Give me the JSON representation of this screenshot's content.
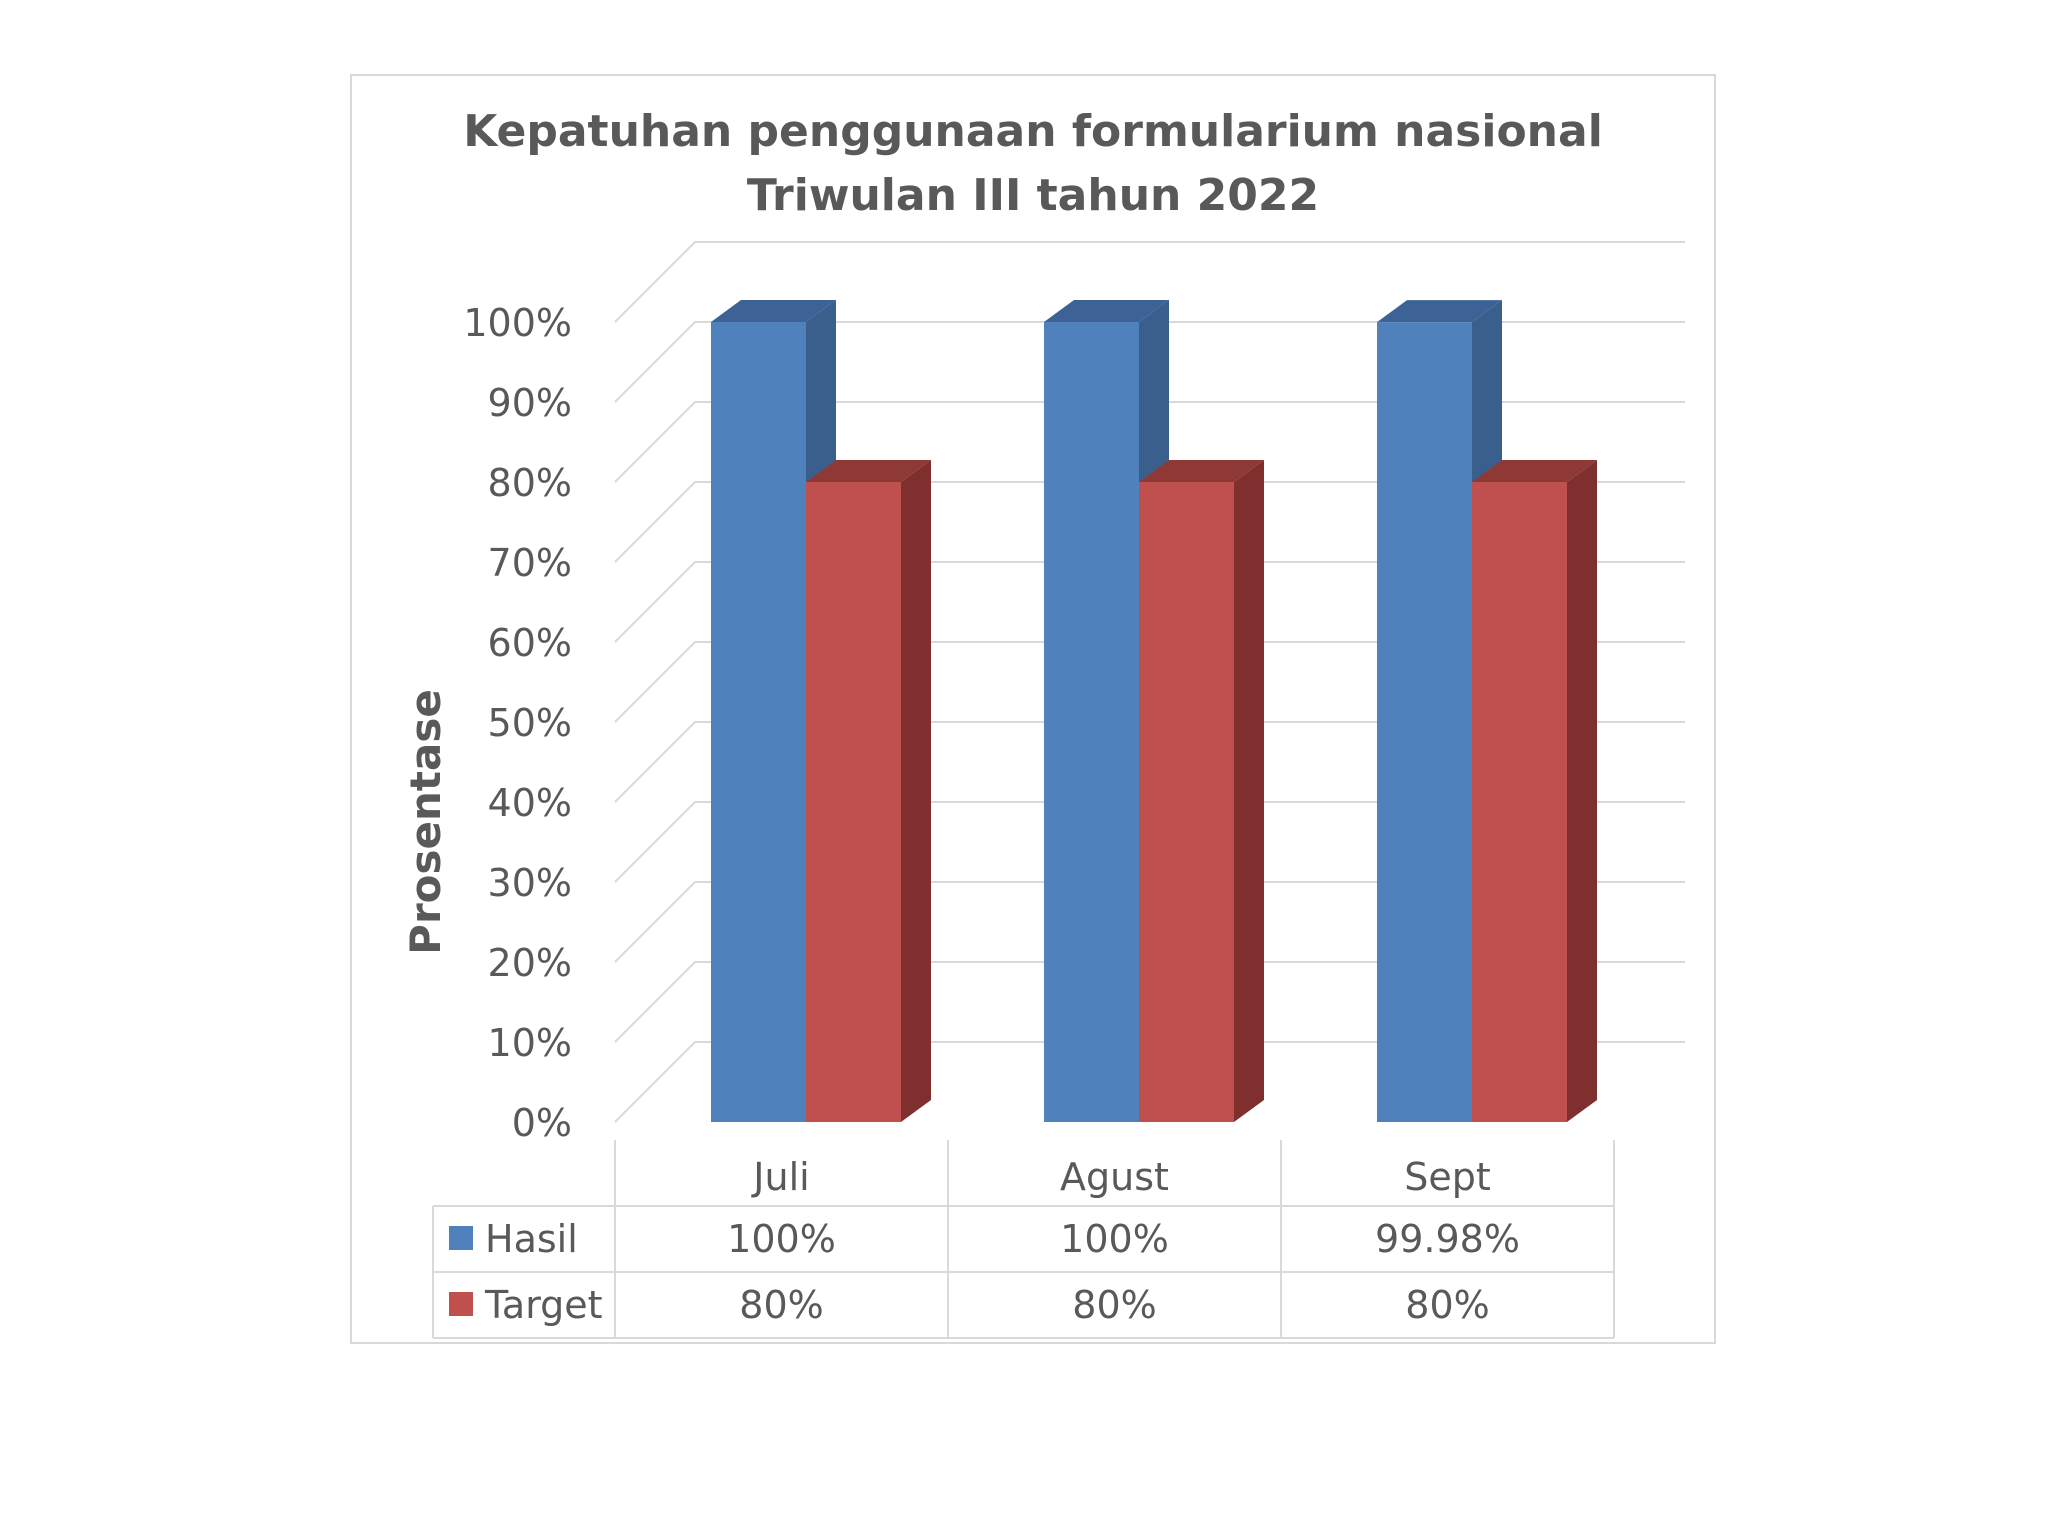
{
  "chart_data": {
    "type": "bar",
    "title_lines": [
      "Kepatuhan penggunaan formularium nasional",
      "Triwulan III tahun 2022"
    ],
    "ylabel": "Prosentase",
    "xlabel": "",
    "categories": [
      "Juli",
      "Agust",
      "Sept"
    ],
    "series": [
      {
        "name": "Hasil",
        "values": [
          100,
          100,
          99.98
        ],
        "labels": [
          "100%",
          "100%",
          "99.98%"
        ],
        "color": "#4f81bd",
        "side_color": "#3a5f8d",
        "top_color": "#3d6396"
      },
      {
        "name": "Target",
        "values": [
          80,
          80,
          80
        ],
        "labels": [
          "80%",
          "80%",
          "80%"
        ],
        "color": "#c0504d",
        "side_color": "#7f2f2d",
        "top_color": "#8f3936"
      }
    ],
    "ylim": [
      0,
      100
    ],
    "yticks": [
      0,
      10,
      20,
      30,
      40,
      50,
      60,
      70,
      80,
      90,
      100
    ],
    "ytick_labels": [
      "0%",
      "10%",
      "20%",
      "30%",
      "40%",
      "50%",
      "60%",
      "70%",
      "80%",
      "90%",
      "100%"
    ],
    "grid": true,
    "style": "3d-clustered-column-with-data-table",
    "legend_placement": "data-table-left"
  }
}
